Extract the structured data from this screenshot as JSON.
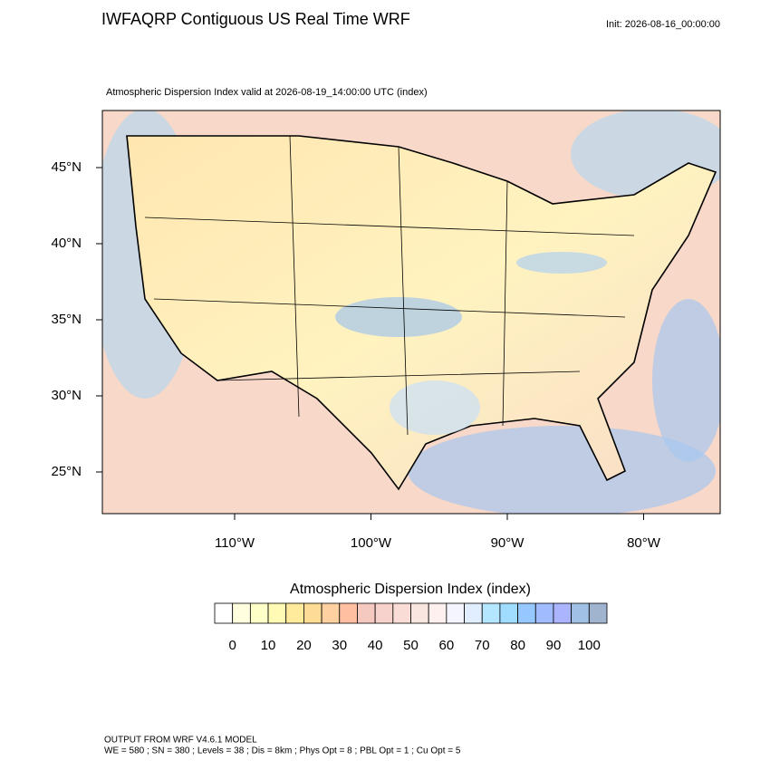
{
  "header": {
    "title": "IWFAQRP Contiguous US Real Time WRF",
    "init": "Init: 2026-08-16_00:00:00",
    "subtitle": "Atmospheric Dispersion Index valid at 2026-08-19_14:00:00 UTC   (index)"
  },
  "map": {
    "lat_labels": [
      "45°N",
      "40°N",
      "35°N",
      "30°N",
      "25°N"
    ],
    "lon_labels": [
      "110°W",
      "100°W",
      "90°W",
      "80°W"
    ]
  },
  "colorbar": {
    "title": "Atmospheric Dispersion Index  (index)",
    "colors": [
      "#ffffff",
      "#ffffe0",
      "#ffffc8",
      "#fffab4",
      "#ffeb9b",
      "#ffdc96",
      "#ffd0a0",
      "#ffbfa0",
      "#f5c8c0",
      "#f7d2cc",
      "#f8dcd5",
      "#fae6e0",
      "#fdf0ee",
      "#f5f5ff",
      "#e0eeff",
      "#b4e6ff",
      "#a0dcff",
      "#96c8ff",
      "#a0bcff",
      "#aab4ff",
      "#a0c0e6",
      "#a0b4d0"
    ],
    "labels": [
      "0",
      "10",
      "20",
      "30",
      "40",
      "50",
      "60",
      "70",
      "80",
      "90",
      "100"
    ]
  },
  "footer": {
    "line1": "OUTPUT FROM WRF V4.6.1 MODEL",
    "line2": "WE = 580 ; SN = 380 ; Levels = 38 ; Dis = 8km ; Phys Opt = 8 ; PBL Opt = 1 ; Cu Opt = 5"
  }
}
